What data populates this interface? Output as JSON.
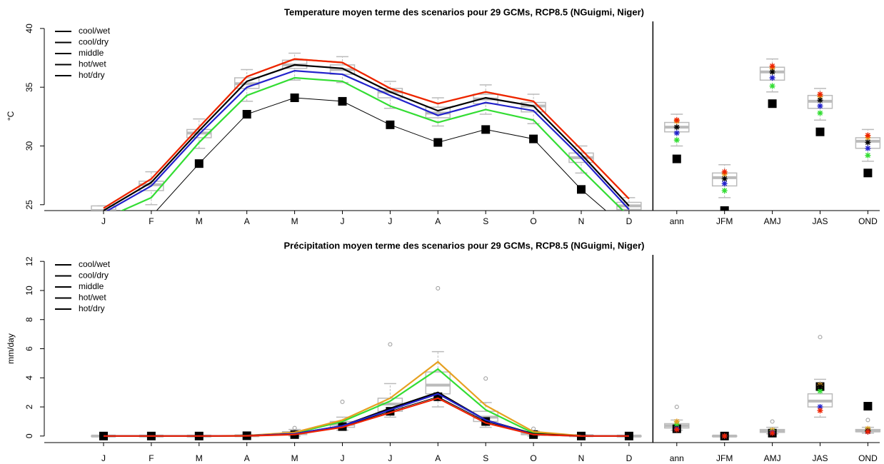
{
  "chart_data": [
    {
      "type": "line",
      "title": "Temperature moyen terme des scenarios pour 29 GCMs, RCP8.5 (NGuigmi, Niger)",
      "y_label": "°C",
      "categories": [
        "J",
        "F",
        "M",
        "A",
        "M",
        "J",
        "J",
        "A",
        "S",
        "O",
        "N",
        "D",
        "ann",
        "JFM",
        "AMJ",
        "JAS",
        "OND"
      ],
      "ylim": [
        24.5,
        40.6
      ],
      "yticks": [
        25,
        30,
        35,
        40
      ],
      "series": [
        {
          "name": "cool/wet",
          "color": "#33dd33",
          "values": [
            23.8,
            25.6,
            30.3,
            34.3,
            35.8,
            35.5,
            33.4,
            32.0,
            33.1,
            32.2,
            28.0,
            24.0,
            30.5,
            26.2,
            35.1,
            32.8,
            29.2
          ]
        },
        {
          "name": "cool/dry",
          "color": "#e6a020",
          "values": [
            24.7,
            27.2,
            31.6,
            35.9,
            37.4,
            37.1,
            34.9,
            33.6,
            34.6,
            33.8,
            29.7,
            25.5,
            32.1,
            27.6,
            36.6,
            34.2,
            30.7
          ]
        },
        {
          "name": "middle",
          "color": "#000000",
          "values": [
            24.5,
            26.9,
            31.3,
            35.5,
            36.9,
            36.6,
            34.6,
            33.0,
            34.1,
            33.4,
            29.3,
            24.9,
            31.6,
            27.2,
            36.3,
            33.9,
            30.3
          ]
        },
        {
          "name": "hot/wet",
          "color": "#2222cc",
          "values": [
            24.3,
            26.6,
            31.0,
            35.0,
            36.4,
            36.1,
            34.3,
            32.6,
            33.7,
            33.0,
            29.0,
            24.6,
            31.1,
            26.8,
            35.8,
            33.4,
            29.8
          ]
        },
        {
          "name": "hot/dry",
          "color": "#ee2200",
          "values": [
            24.7,
            27.2,
            31.6,
            35.9,
            37.4,
            37.1,
            34.9,
            33.6,
            34.6,
            33.8,
            29.7,
            25.5,
            32.2,
            27.8,
            36.8,
            34.4,
            30.9
          ]
        }
      ],
      "observed": {
        "color": "#000000",
        "values": [
          22.5,
          24.0,
          28.5,
          32.7,
          34.1,
          33.8,
          31.8,
          30.3,
          31.4,
          30.6,
          26.3,
          22.8,
          28.9,
          24.5,
          33.6,
          31.2,
          27.7
        ]
      },
      "boxes": [
        {
          "median": 24.5,
          "q1": 24.2,
          "q3": 24.9,
          "low": 23.8,
          "high": 24.9,
          "outliers": []
        },
        {
          "median": 26.7,
          "q1": 26.2,
          "q3": 27.0,
          "low": 25.0,
          "high": 27.8,
          "outliers": []
        },
        {
          "median": 31.1,
          "q1": 30.7,
          "q3": 31.4,
          "low": 29.8,
          "high": 32.3,
          "outliers": []
        },
        {
          "median": 35.3,
          "q1": 34.9,
          "q3": 35.8,
          "low": 33.8,
          "high": 36.5,
          "outliers": []
        },
        {
          "median": 36.9,
          "q1": 36.6,
          "q3": 37.3,
          "low": 35.6,
          "high": 37.9,
          "outliers": []
        },
        {
          "median": 36.5,
          "q1": 36.1,
          "q3": 36.9,
          "low": 35.4,
          "high": 37.6,
          "outliers": []
        },
        {
          "median": 34.6,
          "q1": 34.1,
          "q3": 34.9,
          "low": 33.2,
          "high": 35.5,
          "outliers": []
        },
        {
          "median": 32.8,
          "q1": 32.4,
          "q3": 33.3,
          "low": 31.7,
          "high": 34.1,
          "outliers": []
        },
        {
          "median": 34.0,
          "q1": 33.6,
          "q3": 34.4,
          "low": 32.7,
          "high": 35.2,
          "outliers": []
        },
        {
          "median": 33.4,
          "q1": 32.9,
          "q3": 33.7,
          "low": 31.9,
          "high": 34.4,
          "outliers": []
        },
        {
          "median": 29.0,
          "q1": 28.6,
          "q3": 29.4,
          "low": 27.7,
          "high": 30.0,
          "outliers": []
        },
        {
          "median": 24.9,
          "q1": 24.6,
          "q3": 25.2,
          "low": 24.0,
          "high": 25.6,
          "outliers": []
        },
        {
          "median": 31.6,
          "q1": 31.2,
          "q3": 32.0,
          "low": 30.0,
          "high": 32.7,
          "outliers": []
        },
        {
          "median": 27.3,
          "q1": 26.6,
          "q3": 27.7,
          "low": 25.6,
          "high": 28.4,
          "outliers": []
        },
        {
          "median": 36.3,
          "q1": 35.6,
          "q3": 36.7,
          "low": 34.6,
          "high": 37.4,
          "outliers": []
        },
        {
          "median": 33.8,
          "q1": 33.2,
          "q3": 34.3,
          "low": 32.2,
          "high": 34.9,
          "outliers": []
        },
        {
          "median": 30.4,
          "q1": 29.8,
          "q3": 30.7,
          "low": 28.7,
          "high": 31.4,
          "outliers": []
        }
      ]
    },
    {
      "type": "line",
      "title": "Précipitation moyen terme des scenarios pour 29 GCMs, RCP8.5 (NGuigmi, Niger)",
      "y_label": "mm/day",
      "categories": [
        "J",
        "F",
        "M",
        "A",
        "M",
        "J",
        "J",
        "A",
        "S",
        "O",
        "N",
        "D",
        "ann",
        "JFM",
        "AMJ",
        "JAS",
        "OND"
      ],
      "ylim": [
        -0.45,
        12.45
      ],
      "yticks": [
        0,
        2,
        4,
        6,
        8,
        10,
        12
      ],
      "series": [
        {
          "name": "cool/wet",
          "color": "#33dd33",
          "values": [
            0,
            0,
            0,
            0.02,
            0.2,
            1.0,
            2.4,
            4.6,
            1.8,
            0.2,
            0,
            0,
            0.8,
            0,
            0.35,
            3.1,
            0.4
          ]
        },
        {
          "name": "cool/dry",
          "color": "#e6a020",
          "values": [
            0,
            0,
            0,
            0.03,
            0.25,
            1.1,
            2.6,
            5.1,
            2.1,
            0.3,
            0.02,
            0,
            1.0,
            0,
            0.4,
            3.5,
            0.5
          ]
        },
        {
          "name": "middle",
          "color": "#000000",
          "values": [
            0,
            0,
            0,
            0.02,
            0.15,
            0.7,
            1.9,
            3.0,
            1.1,
            0.15,
            0,
            0,
            0.5,
            0,
            0.25,
            3.4,
            0.35
          ]
        },
        {
          "name": "hot/wet",
          "color": "#2222cc",
          "values": [
            0,
            0,
            0,
            0.02,
            0.15,
            0.7,
            1.8,
            2.9,
            1.1,
            0.1,
            0,
            0,
            0.5,
            0,
            0.25,
            2.0,
            0.3
          ]
        },
        {
          "name": "hot/dry",
          "color": "#ee2200",
          "values": [
            0,
            0,
            0,
            0.01,
            0.1,
            0.6,
            1.6,
            2.6,
            0.9,
            0.1,
            0,
            0,
            0.45,
            0,
            0.2,
            1.75,
            0.3
          ]
        }
      ],
      "observed": {
        "color": "#000000",
        "values": [
          0,
          0,
          0,
          0.02,
          0.1,
          0.65,
          1.7,
          2.7,
          1.0,
          0.1,
          0,
          0,
          0.5,
          0,
          0.2,
          3.4,
          2.05
        ]
      },
      "boxes": [
        {
          "median": 0,
          "q1": 0,
          "q3": 0.02,
          "low": 0,
          "high": 0.05,
          "outliers": []
        },
        {
          "median": 0,
          "q1": 0,
          "q3": 0.02,
          "low": 0,
          "high": 0.05,
          "outliers": []
        },
        {
          "median": 0,
          "q1": 0,
          "q3": 0.02,
          "low": 0,
          "high": 0.05,
          "outliers": []
        },
        {
          "median": 0.02,
          "q1": 0,
          "q3": 0.05,
          "low": 0,
          "high": 0.1,
          "outliers": []
        },
        {
          "median": 0.2,
          "q1": 0.1,
          "q3": 0.3,
          "low": 0,
          "high": 0.45,
          "outliers": [
            0.55
          ]
        },
        {
          "median": 0.8,
          "q1": 0.6,
          "q3": 1.0,
          "low": 0.4,
          "high": 1.3,
          "outliers": [
            2.35
          ]
        },
        {
          "median": 2.2,
          "q1": 1.7,
          "q3": 2.6,
          "low": 1.3,
          "high": 3.6,
          "outliers": [
            6.3
          ]
        },
        {
          "median": 3.5,
          "q1": 2.9,
          "q3": 4.4,
          "low": 2.0,
          "high": 5.8,
          "outliers": [
            10.15
          ]
        },
        {
          "median": 1.3,
          "q1": 1.0,
          "q3": 1.7,
          "low": 0.6,
          "high": 2.3,
          "outliers": [
            3.95
          ]
        },
        {
          "median": 0.15,
          "q1": 0.1,
          "q3": 0.25,
          "low": 0,
          "high": 0.35,
          "outliers": [
            0.5
          ]
        },
        {
          "median": 0.02,
          "q1": 0,
          "q3": 0.05,
          "low": 0,
          "high": 0.1,
          "outliers": []
        },
        {
          "median": 0,
          "q1": 0,
          "q3": 0.02,
          "low": 0,
          "high": 0.05,
          "outliers": []
        },
        {
          "median": 0.7,
          "q1": 0.55,
          "q3": 0.85,
          "low": 0.4,
          "high": 1.1,
          "outliers": [
            2.0
          ]
        },
        {
          "median": 0,
          "q1": 0,
          "q3": 0.02,
          "low": 0,
          "high": 0.05,
          "outliers": []
        },
        {
          "median": 0.35,
          "q1": 0.25,
          "q3": 0.45,
          "low": 0.15,
          "high": 0.6,
          "outliers": [
            1.0
          ]
        },
        {
          "median": 2.4,
          "q1": 2.0,
          "q3": 2.9,
          "low": 1.3,
          "high": 3.9,
          "outliers": [
            6.8
          ]
        },
        {
          "median": 0.35,
          "q1": 0.3,
          "q3": 0.45,
          "low": 0.2,
          "high": 0.6,
          "outliers": [
            1.1
          ]
        }
      ]
    }
  ]
}
